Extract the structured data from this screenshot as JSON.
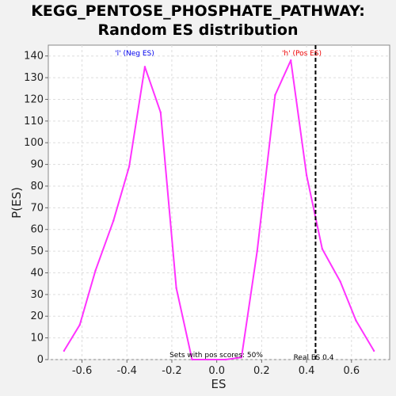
{
  "title_line1": "KEGG_PENTOSE_PHOSPHATE_PATHWAY:",
  "title_line2": "Random ES distribution",
  "chart_data": {
    "type": "line",
    "xlabel": "ES",
    "ylabel": "P(ES)",
    "xlim": [
      -0.75,
      0.77
    ],
    "ylim": [
      0,
      145
    ],
    "xticks": [
      -0.6,
      -0.4,
      -0.2,
      0.0,
      0.2,
      0.4,
      0.6
    ],
    "xtick_labels": [
      "-0.6",
      "-0.4",
      "-0.2",
      "0.0",
      "0.2",
      "0.4",
      "0.6"
    ],
    "yticks": [
      0,
      10,
      20,
      30,
      40,
      50,
      60,
      70,
      80,
      90,
      100,
      110,
      120,
      130,
      140
    ],
    "grid": true,
    "series": [
      {
        "color": "#ff33ff",
        "x": [
          -0.68,
          -0.61,
          -0.54,
          -0.46,
          -0.39,
          -0.32,
          -0.25,
          -0.18,
          -0.11,
          -0.04,
          0.04,
          0.11,
          0.18,
          0.26,
          0.33,
          0.4,
          0.47,
          0.55,
          0.62,
          0.7
        ],
        "y": [
          4,
          16,
          41,
          64,
          89,
          135,
          114,
          33,
          0,
          0,
          0,
          1,
          50,
          122,
          138,
          85,
          51,
          36,
          18,
          4
        ]
      }
    ],
    "annotations": {
      "neg_label": "'l' (Neg ES)",
      "pos_label": "'h' (Pos ES)",
      "pos_scores": "Sets with pos scores: 50%",
      "real_es": "Real ES 0.4",
      "real_es_value": 0.44,
      "neg_color": "#0000ee",
      "pos_color": "#ee0000"
    }
  }
}
